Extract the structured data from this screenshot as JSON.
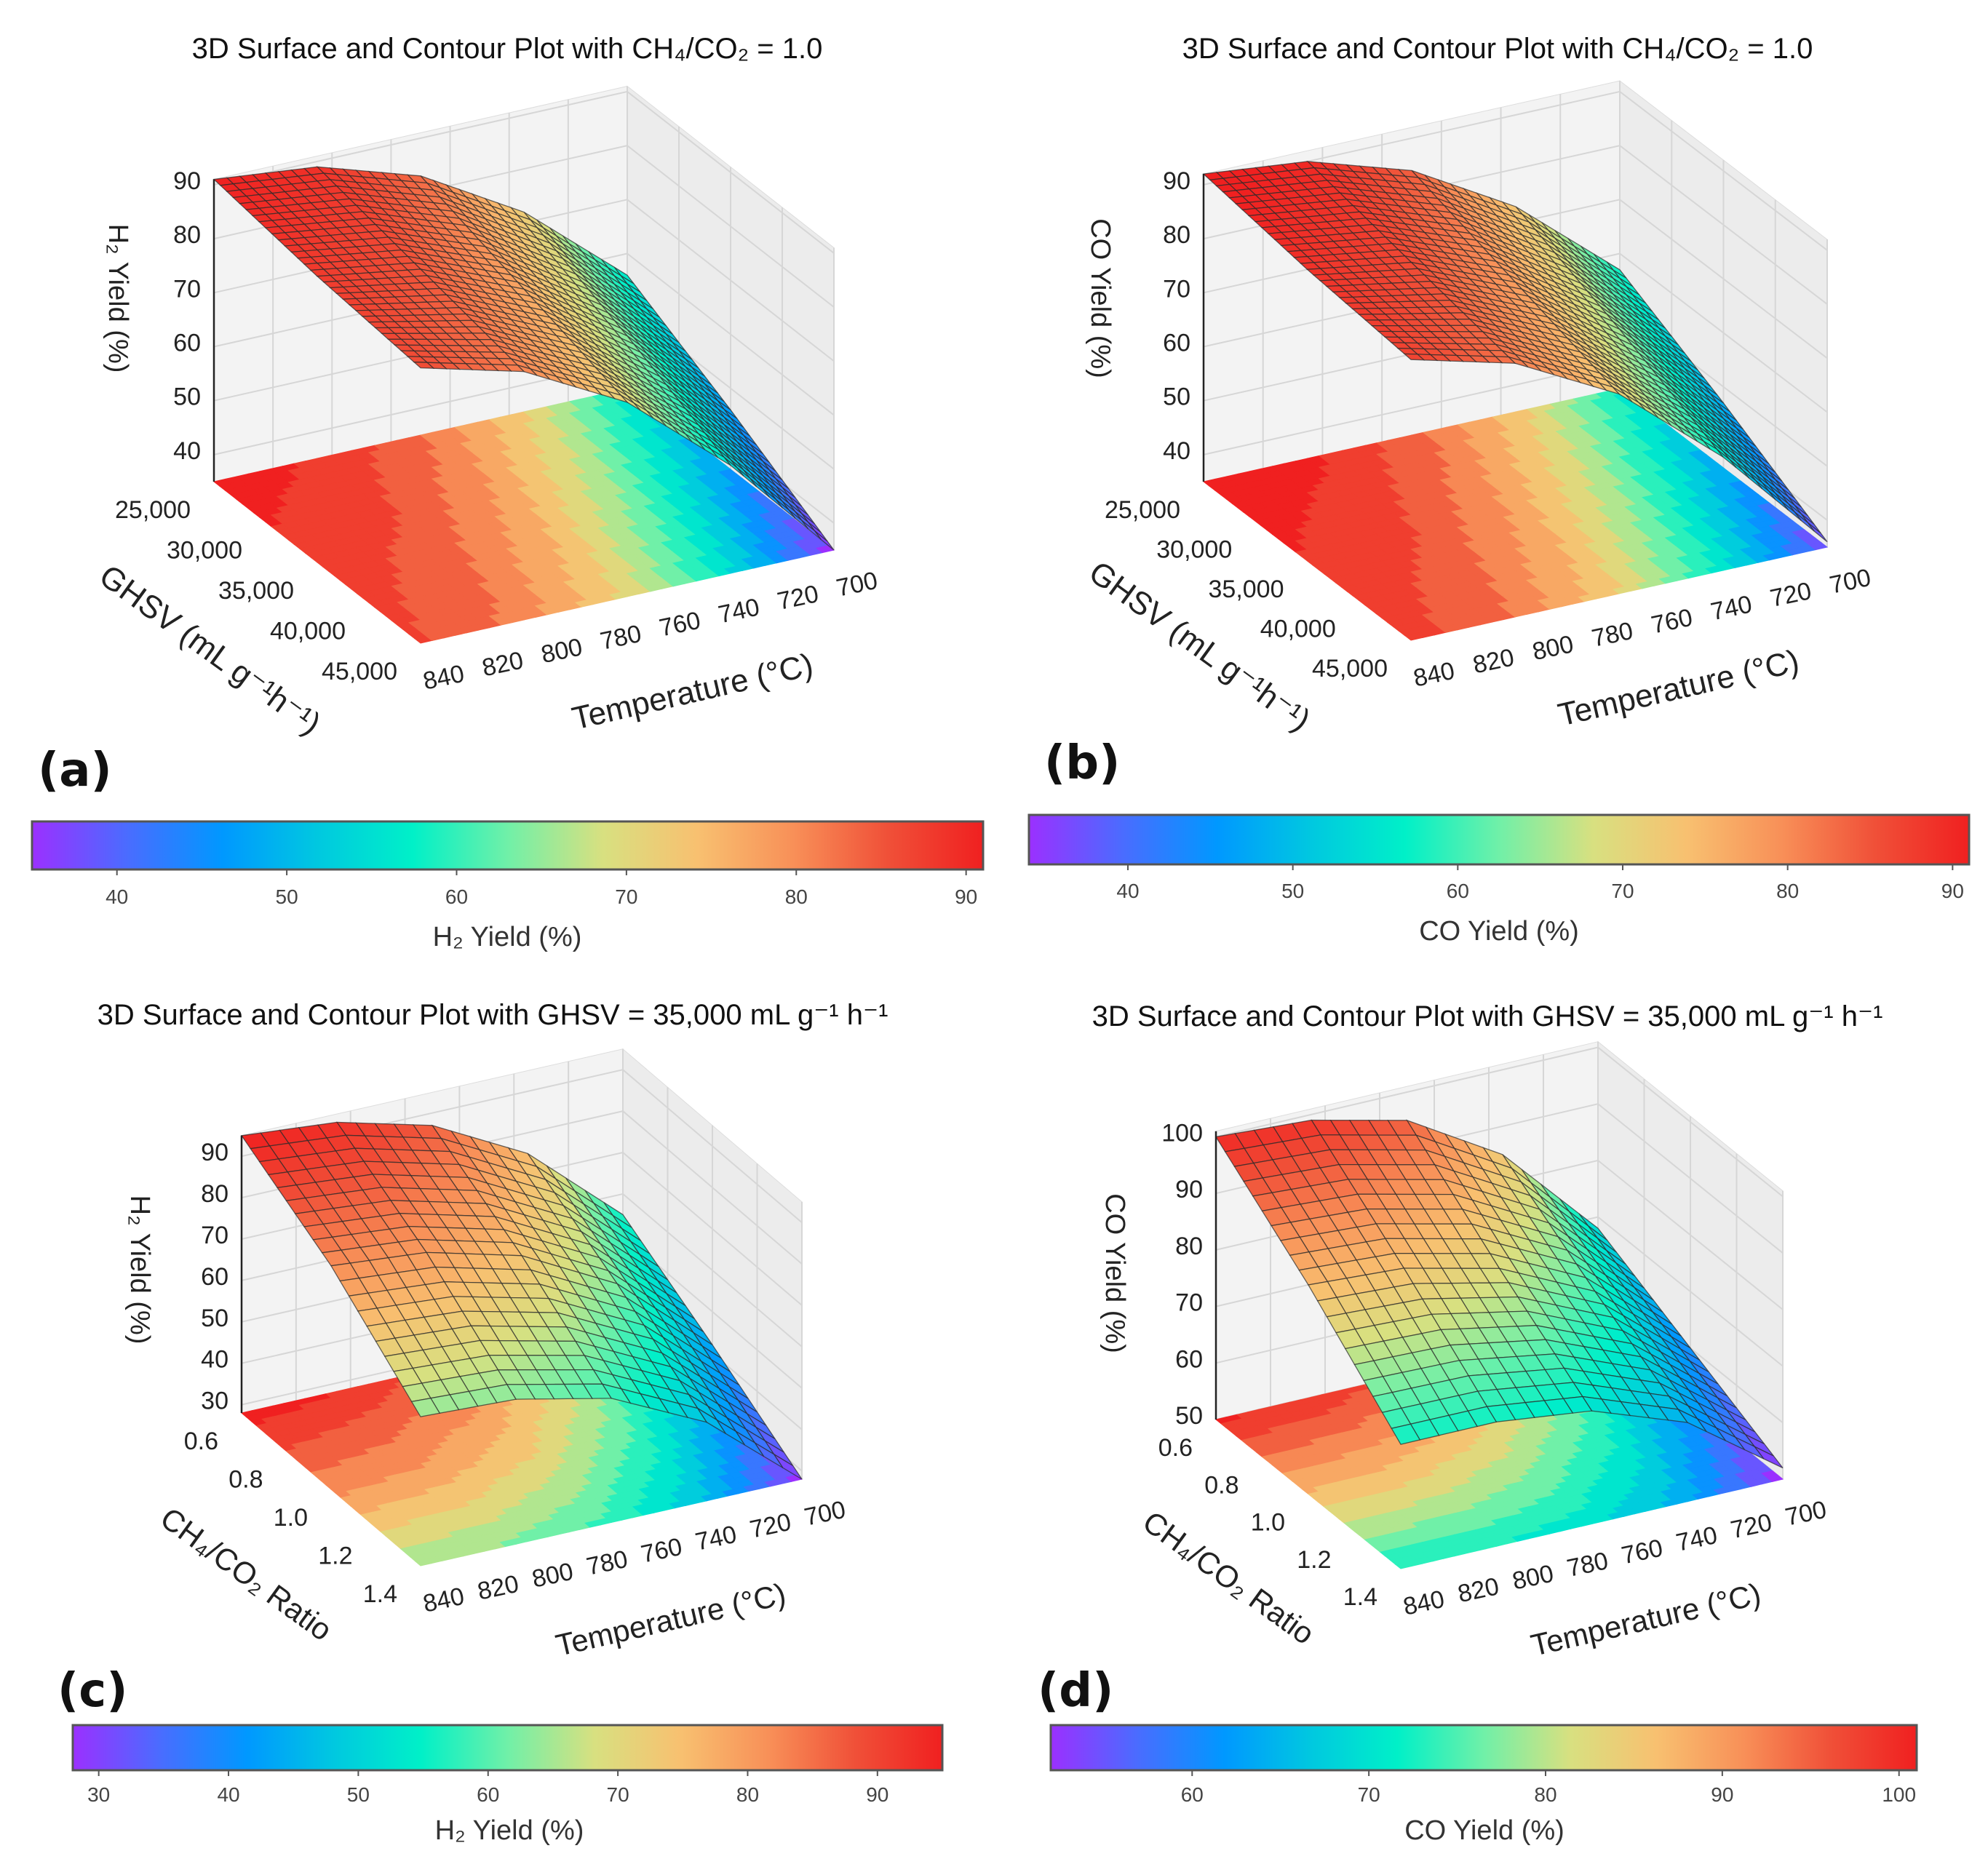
{
  "colormap": [
    "#9b30ff",
    "#4a6cff",
    "#0098ff",
    "#00c8e0",
    "#00f0c8",
    "#70f0a8",
    "#d8e080",
    "#f8c070",
    "#f89058",
    "#f05038",
    "#f02020"
  ],
  "chart_data": [
    {
      "type": "surface",
      "panel_label": "(a)",
      "title": "3D Surface and Contour Plot with CH₄/CO₂ = 1.0",
      "zlabel": "H₂ Yield (%)",
      "ylabel": "GHSV (mL g⁻¹h⁻¹)",
      "xlabel": "Temperature (°C)",
      "x_ticks": [
        "700",
        "720",
        "740",
        "760",
        "780",
        "800",
        "820",
        "840"
      ],
      "x_range": [
        700,
        840
      ],
      "y_ticks": [
        "25,000",
        "30,000",
        "35,000",
        "40,000",
        "45,000"
      ],
      "y_range": [
        25000,
        45000
      ],
      "z_ticks": [
        "40",
        "50",
        "60",
        "70",
        "80",
        "90"
      ],
      "z_range": [
        35,
        91
      ],
      "grid_x": [
        700,
        735,
        770,
        805,
        840
      ],
      "grid_y": [
        25000,
        35000,
        45000
      ],
      "z_grid": [
        [
          56,
          72,
          83,
          89,
          91
        ],
        [
          46,
          64,
          77,
          85,
          88
        ],
        [
          35,
          55,
          71,
          81,
          86
        ]
      ],
      "colorbar": {
        "label": "H₂ Yield (%)",
        "ticks": [
          "40",
          "50",
          "60",
          "70",
          "80",
          "90"
        ],
        "range": [
          35,
          91
        ]
      }
    },
    {
      "type": "surface",
      "panel_label": "(b)",
      "title": "3D Surface and Contour Plot with CH₄/CO₂ = 1.0",
      "zlabel": "CO Yield (%)",
      "ylabel": "GHSV (mL g⁻¹h⁻¹)",
      "xlabel": "Temperature (°C)",
      "x_ticks": [
        "700",
        "720",
        "740",
        "760",
        "780",
        "800",
        "820",
        "840"
      ],
      "x_range": [
        700,
        840
      ],
      "y_ticks": [
        "25,000",
        "30,000",
        "35,000",
        "40,000",
        "45,000"
      ],
      "y_range": [
        25000,
        45000
      ],
      "z_ticks": [
        "40",
        "50",
        "60",
        "70",
        "80",
        "90"
      ],
      "z_range": [
        35,
        92
      ],
      "grid_x": [
        700,
        735,
        770,
        805,
        840
      ],
      "grid_y": [
        25000,
        35000,
        45000
      ],
      "z_grid": [
        [
          57,
          73,
          84,
          90,
          92
        ],
        [
          47,
          65,
          78,
          86,
          89
        ],
        [
          36,
          56,
          72,
          82,
          87
        ]
      ],
      "colorbar": {
        "label": "CO Yield (%)",
        "ticks": [
          "40",
          "50",
          "60",
          "70",
          "80",
          "90"
        ],
        "range": [
          34,
          91
        ]
      }
    },
    {
      "type": "surface",
      "panel_label": "(c)",
      "title": "3D Surface and Contour Plot with GHSV = 35,000 mL g⁻¹ h⁻¹",
      "zlabel": "H₂ Yield (%)",
      "ylabel": "CH₄/CO₂ Ratio",
      "xlabel": "Temperature (°C)",
      "x_ticks": [
        "700",
        "720",
        "740",
        "760",
        "780",
        "800",
        "820",
        "840"
      ],
      "x_range": [
        700,
        840
      ],
      "y_ticks": [
        "0.6",
        "0.8",
        "1.0",
        "1.2",
        "1.4"
      ],
      "y_range": [
        0.6,
        1.4
      ],
      "z_ticks": [
        "30",
        "40",
        "50",
        "60",
        "70",
        "80",
        "90"
      ],
      "z_range": [
        28,
        95
      ],
      "grid_x": [
        700,
        735,
        770,
        805,
        840
      ],
      "grid_y": [
        0.6,
        1.0,
        1.4
      ],
      "z_grid": [
        [
          55,
          75,
          87,
          93,
          95
        ],
        [
          42,
          62,
          74,
          80,
          82
        ],
        [
          28,
          47,
          58,
          63,
          64
        ]
      ],
      "colorbar": {
        "label": "H₂ Yield (%)",
        "ticks": [
          "30",
          "40",
          "50",
          "60",
          "70",
          "80",
          "90"
        ],
        "range": [
          28,
          95
        ]
      }
    },
    {
      "type": "surface",
      "panel_label": "(d)",
      "title": "3D Surface and Contour Plot with GHSV = 35,000 mL g⁻¹ h⁻¹",
      "zlabel": "CO Yield (%)",
      "ylabel": "CH₄/CO₂ Ratio",
      "xlabel": "Temperature (°C)",
      "x_ticks": [
        "700",
        "720",
        "740",
        "760",
        "780",
        "800",
        "820",
        "840"
      ],
      "x_range": [
        700,
        840
      ],
      "y_ticks": [
        "0.6",
        "0.8",
        "1.0",
        "1.2",
        "1.4"
      ],
      "y_range": [
        0.6,
        1.4
      ],
      "z_ticks": [
        "50",
        "60",
        "70",
        "80",
        "90",
        "100"
      ],
      "z_range": [
        50,
        101
      ],
      "grid_x": [
        700,
        735,
        770,
        805,
        840
      ],
      "grid_y": [
        0.6,
        1.0,
        1.4
      ],
      "z_grid": [
        [
          68,
          85,
          95,
          99,
          100
        ],
        [
          60,
          74,
          82,
          86,
          87
        ],
        [
          52,
          64,
          70,
          72,
          72
        ]
      ],
      "colorbar": {
        "label": "CO Yield (%)",
        "ticks": [
          "60",
          "70",
          "80",
          "90",
          "100"
        ],
        "range": [
          52,
          101
        ]
      }
    }
  ]
}
